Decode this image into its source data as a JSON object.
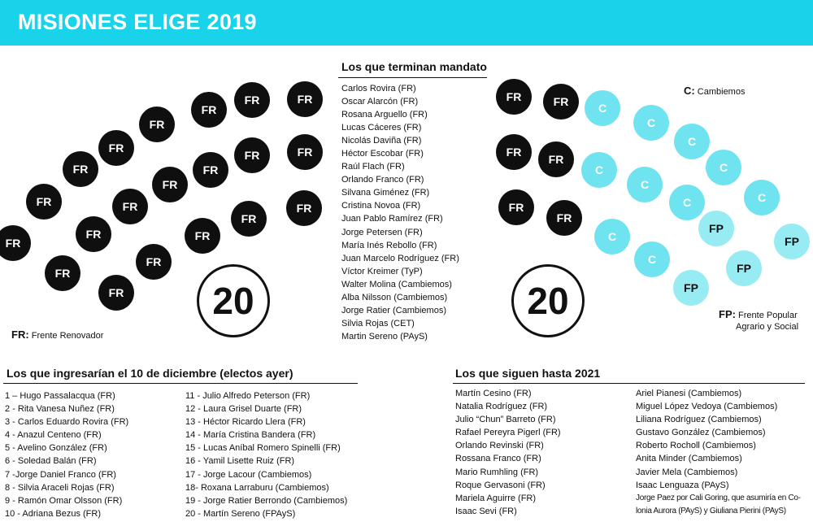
{
  "header": {
    "title": "MISIONES ELIGE 2019"
  },
  "colors": {
    "banner": "#19d3ea",
    "fr": "#0f0f0f",
    "cambiemos": "#6fe3f0",
    "fp": "#97ecf4"
  },
  "left_chamber": {
    "seats": [
      "FR",
      "FR",
      "FR",
      "FR",
      "FR",
      "FR",
      "FR",
      "FR",
      "FR",
      "FR",
      "FR",
      "FR",
      "FR",
      "FR",
      "FR",
      "FR",
      "FR",
      "FR",
      "FR",
      "FR"
    ],
    "total": "20",
    "legend_code": "FR:",
    "legend_text": "Frente Renovador"
  },
  "right_chamber": {
    "seats": [
      "FR",
      "FR",
      "FR",
      "FR",
      "FR",
      "FR",
      "C",
      "C",
      "C",
      "C",
      "C",
      "C",
      "C",
      "C",
      "C",
      "C",
      "FP",
      "FP",
      "FP",
      "FP"
    ],
    "total": "20",
    "legend_c_code": "C:",
    "legend_c_text": "Cambiemos",
    "legend_fp_code": "FP:",
    "legend_fp_text_1": "Frente Popular",
    "legend_fp_text_2": "Agrario y Social"
  },
  "terminan": {
    "title": "Los que terminan mandato",
    "items": [
      "Carlos Rovira (FR)",
      "Oscar Alarcón (FR)",
      "Rosana Arguello (FR)",
      "Lucas Cáceres (FR)",
      "Nicolás Daviña (FR)",
      "Héctor Escobar (FR)",
      "Raúl Flach (FR)",
      "Orlando Franco (FR)",
      "Silvana Giménez (FR)",
      "Cristina Novoa (FR)",
      "Juan Pablo Ramírez (FR)",
      "Jorge Petersen (FR)",
      "María Inés Rebollo (FR)",
      "Juan Marcelo Rodríguez (FR)",
      "Víctor Kreimer (TyP)",
      "Walter Molina (Cambiemos)",
      "Alba Nilsson (Cambiemos)",
      "Jorge Ratier (Cambiemos)",
      "Silvia Rojas (CET)",
      "Martin Sereno (PAyS)"
    ]
  },
  "ingresarian": {
    "title": "Los que ingresarían el 10 de diciembre (electos ayer)",
    "col1": [
      "1 – Hugo Passalacqua (FR)",
      "2 - Rita Vanesa Nuñez (FR)",
      "3 - Carlos Eduardo Rovira (FR)",
      "4 - Anazul Centeno (FR)",
      "5 - Avelino González (FR)",
      "6 - Soledad Balán (FR)",
      "7 -Jorge Daniel Franco (FR)",
      "8 - Silvia Araceli Rojas (FR)",
      "9 - Ramón Omar Olsson (FR)",
      "10 - Adriana Bezus (FR)"
    ],
    "col2": [
      "11 - Julio Alfredo Peterson (FR)",
      "12 - Laura Grisel Duarte (FR)",
      "13 - Héctor Ricardo Llera (FR)",
      "14 - María Cristina Bandera (FR)",
      "15 - Lucas Aníbal Romero Spinelli (FR)",
      "16 - Yamil Lisette Ruiz (FR)",
      "17 - Jorge Lacour (Cambiemos)",
      "18- Roxana Larraburu (Cambiemos)",
      "19 - Jorge Ratier Berrondo (Cambiemos)",
      "20 - Martín Sereno (FPAyS)"
    ]
  },
  "siguen": {
    "title": "Los que siguen hasta 2021",
    "col1": [
      "Martín Cesino (FR)",
      "Natalia Rodríguez (FR)",
      "Julio “Chun” Barreto (FR)",
      "Rafael Pereyra Pigerl (FR)",
      "Orlando Revinski (FR)",
      "Rossana Franco (FR)",
      "Mario Rumhling (FR)",
      "Roque Gervasoni (FR)",
      "Mariela Aguirre (FR)",
      "Isaac Sevi (FR)"
    ],
    "col2": [
      "Ariel Pianesi (Cambiemos)",
      "Miguel López Vedoya (Cambiemos)",
      "Liliana Rodríguez (Cambiemos)",
      "Gustavo González (Cambiemos)",
      "Roberto Rocholl (Cambiemos)",
      "Anita Minder (Cambiemos)",
      "Javier Mela (Cambiemos)",
      "Isaac Lenguaza (PAyS)",
      "Jorge Paez por Cali Goring, que asumiría en Co-",
      "lonia Aurora (PAyS) y Giuliana Pierini (PAyS)"
    ]
  }
}
